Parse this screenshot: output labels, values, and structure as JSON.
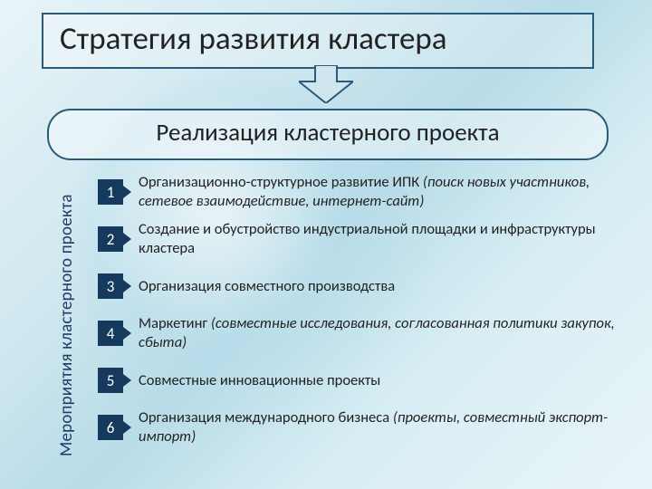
{
  "title": "Стратегия развития кластера",
  "subtitle": "Реализация кластерного проекта",
  "vertical_label": "Мероприятия кластерного проекта",
  "colors": {
    "border": "#2a5a7a",
    "num_bg": "#153a5e",
    "num_fg": "#ffffff",
    "text": "#222222",
    "vlabel": "#1f3b66",
    "arrow_stroke": "#2a5a7a",
    "arrow_fill": "#cfe6ef"
  },
  "items": [
    {
      "num": "1",
      "text": "Организационно-структурное развитие ИПК ",
      "italic": "(поиск новых участников, сетевое взаимодействие, интернет-сайт)"
    },
    {
      "num": "2",
      "text": "Создание и обустройство индустриальной площадки и инфраструктуры кластера",
      "italic": ""
    },
    {
      "num": "3",
      "text": "Организация совместного производства",
      "italic": ""
    },
    {
      "num": "4",
      "text": "Маркетинг ",
      "italic": "(совместные исследования, согласованная политики закупок, сбыта)"
    },
    {
      "num": "5",
      "text": "Совместные инновационные проекты",
      "italic": ""
    },
    {
      "num": "6",
      "text": "Организация международного бизнеса ",
      "italic": "(проекты, совместный экспорт-импорт)"
    }
  ]
}
